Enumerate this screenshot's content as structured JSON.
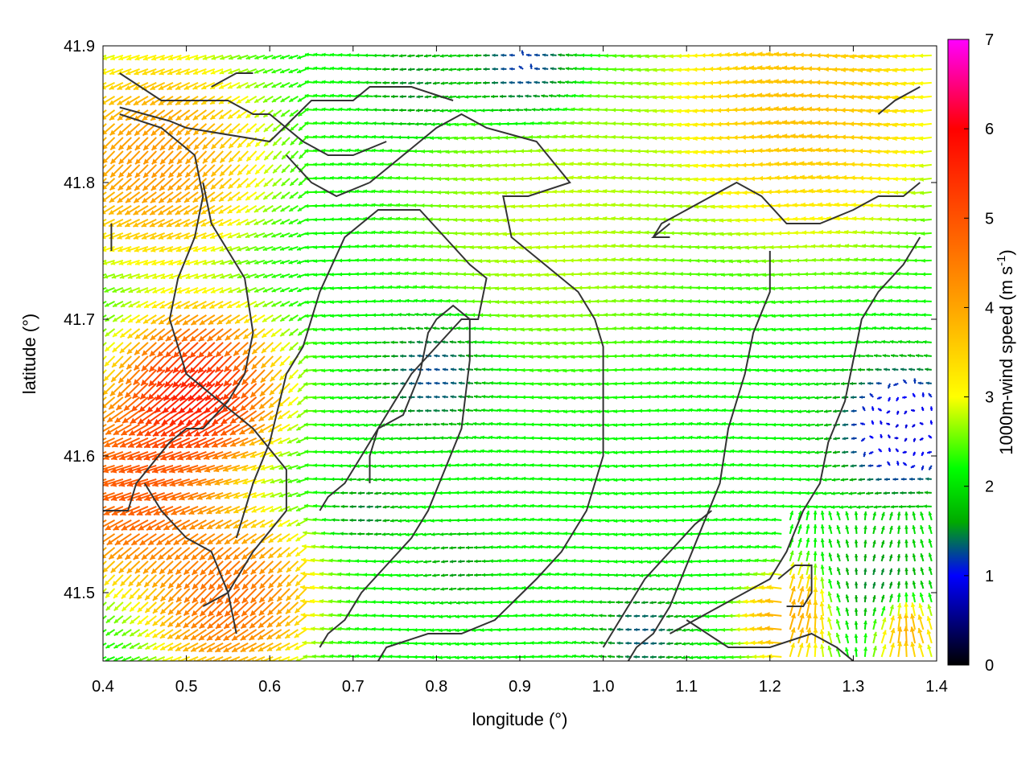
{
  "chart_data": {
    "type": "vector-field",
    "title": "",
    "xlabel": "longitude (°)",
    "ylabel": "latitude (°)",
    "xlim": [
      0.4,
      1.4
    ],
    "ylim": [
      41.45,
      41.9
    ],
    "xticks": [
      "0.4",
      "0.5",
      "0.6",
      "0.7",
      "0.8",
      "0.9",
      "1.0",
      "1.1",
      "1.2",
      "1.3",
      "1.4"
    ],
    "yticks": [
      "41.5",
      "41.6",
      "41.7",
      "41.8",
      "41.9"
    ],
    "colorbar": {
      "label": "1000m-wind speed (m s",
      "label_superscript": "-1",
      "label_suffix": ")",
      "range": [
        0,
        7
      ],
      "ticks": [
        "0",
        "1",
        "2",
        "3",
        "4",
        "5",
        "6",
        "7"
      ],
      "palette": [
        "#000000",
        "#0000ff",
        "#00aa00",
        "#00ff00",
        "#ffff00",
        "#ffa500",
        "#ff0000",
        "#ff00ff"
      ],
      "palette_positions": [
        0,
        1,
        1.6,
        2.2,
        3,
        4,
        6,
        7
      ]
    },
    "wind_field": {
      "description": "Wind vectors on a regular grid; arrows mostly point westward, strongest (5-7 m/s) over the western third around 0.45-0.6°E, 41.6-41.7°N; weak (<1.5 m/s) and variable near 0.78-0.85°E 41.6-41.73°N, near the top centre around 0.85-1.0°E 41.87-41.9°N and along the eastern edge 1.28-1.4°E 41.52-41.7°N.",
      "grid_spacing_deg": 0.01,
      "speed_centers": [
        {
          "lon": 0.52,
          "lat": 41.65,
          "speed": 6.8,
          "radius": 0.07
        },
        {
          "lon": 0.45,
          "lat": 41.58,
          "speed": 5.8,
          "radius": 0.08
        },
        {
          "lon": 0.47,
          "lat": 41.82,
          "speed": 4.8,
          "radius": 0.09
        },
        {
          "lon": 0.56,
          "lat": 41.5,
          "speed": 5.5,
          "radius": 0.07
        },
        {
          "lon": 1.25,
          "lat": 41.86,
          "speed": 4.2,
          "radius": 0.12
        },
        {
          "lon": 1.23,
          "lat": 41.48,
          "speed": 4.5,
          "radius": 0.04
        },
        {
          "lon": 1.36,
          "lat": 41.47,
          "speed": 5,
          "radius": 0.03
        },
        {
          "lon": 0.95,
          "lat": 41.78,
          "speed": 3,
          "radius": 0.12
        },
        {
          "lon": 0.8,
          "lat": 41.66,
          "speed": 0.9,
          "radius": 0.05
        },
        {
          "lon": 0.91,
          "lat": 41.88,
          "speed": 0.6,
          "radius": 0.05
        },
        {
          "lon": 1.36,
          "lat": 41.62,
          "speed": 0.4,
          "radius": 0.06
        },
        {
          "lon": 1.33,
          "lat": 41.5,
          "speed": 1.2,
          "radius": 0.05
        },
        {
          "lon": 1.05,
          "lat": 41.47,
          "speed": 1,
          "radius": 0.04
        },
        {
          "lon": 0.72,
          "lat": 41.56,
          "speed": 1.2,
          "radius": 0.03
        },
        {
          "lon": 0.83,
          "lat": 41.52,
          "speed": 1.3,
          "radius": 0.03
        },
        {
          "lon": 0.78,
          "lat": 41.87,
          "speed": 1.2,
          "radius": 0.04
        }
      ],
      "background_speed": 2.2
    },
    "contours": [
      [
        [
          0.42,
          41.855
        ],
        [
          0.48,
          41.845
        ],
        [
          0.5,
          41.84
        ],
        [
          0.6,
          41.83
        ],
        [
          0.65,
          41.86
        ],
        [
          0.7,
          41.86
        ],
        [
          0.72,
          41.87
        ],
        [
          0.77,
          41.87
        ],
        [
          0.82,
          41.86
        ]
      ],
      [
        [
          0.42,
          41.88
        ],
        [
          0.47,
          41.86
        ],
        [
          0.55,
          41.86
        ],
        [
          0.58,
          41.85
        ],
        [
          0.6,
          41.85
        ],
        [
          0.64,
          41.83
        ],
        [
          0.67,
          41.82
        ],
        [
          0.7,
          41.82
        ],
        [
          0.74,
          41.83
        ]
      ],
      [
        [
          0.72,
          41.8
        ],
        [
          0.78,
          41.83
        ],
        [
          0.8,
          41.84
        ],
        [
          0.83,
          41.85
        ],
        [
          0.86,
          41.84
        ],
        [
          0.92,
          41.83
        ],
        [
          0.96,
          41.8
        ],
        [
          0.91,
          41.79
        ],
        [
          0.88,
          41.79
        ],
        [
          0.89,
          41.76
        ],
        [
          0.93,
          41.74
        ],
        [
          0.97,
          41.72
        ],
        [
          0.99,
          41.7
        ],
        [
          1.0,
          41.68
        ],
        [
          1.0,
          41.65
        ],
        [
          1.0,
          41.6
        ],
        [
          0.98,
          41.56
        ],
        [
          0.95,
          41.53
        ],
        [
          0.92,
          41.51
        ],
        [
          0.87,
          41.48
        ],
        [
          0.83,
          41.47
        ],
        [
          0.79,
          41.47
        ],
        [
          0.74,
          41.46
        ],
        [
          0.73,
          41.45
        ]
      ],
      [
        [
          0.42,
          41.85
        ],
        [
          0.47,
          41.84
        ],
        [
          0.51,
          41.82
        ],
        [
          0.52,
          41.79
        ],
        [
          0.51,
          41.76
        ],
        [
          0.49,
          41.73
        ],
        [
          0.48,
          41.7
        ],
        [
          0.5,
          41.66
        ],
        [
          0.54,
          41.64
        ],
        [
          0.58,
          41.62
        ],
        [
          0.62,
          41.59
        ],
        [
          0.62,
          41.56
        ],
        [
          0.58,
          41.53
        ],
        [
          0.55,
          41.5
        ],
        [
          0.52,
          41.49
        ]
      ],
      [
        [
          0.41,
          41.75
        ],
        [
          0.41,
          41.77
        ]
      ],
      [
        [
          0.4,
          41.56
        ],
        [
          0.43,
          41.56
        ],
        [
          0.44,
          41.58
        ],
        [
          0.48,
          41.61
        ],
        [
          0.5,
          41.62
        ],
        [
          0.52,
          41.62
        ],
        [
          0.55,
          41.64
        ],
        [
          0.57,
          41.66
        ],
        [
          0.58,
          41.69
        ],
        [
          0.57,
          41.73
        ],
        [
          0.55,
          41.75
        ],
        [
          0.53,
          41.77
        ],
        [
          0.52,
          41.8
        ]
      ],
      [
        [
          0.62,
          41.82
        ],
        [
          0.65,
          41.8
        ],
        [
          0.68,
          41.79
        ],
        [
          0.72,
          41.8
        ]
      ],
      [
        [
          0.66,
          41.56
        ],
        [
          0.67,
          41.57
        ],
        [
          0.69,
          41.58
        ],
        [
          0.71,
          41.6
        ],
        [
          0.74,
          41.63
        ],
        [
          0.77,
          41.66
        ],
        [
          0.8,
          41.68
        ],
        [
          0.83,
          41.7
        ],
        [
          0.85,
          41.7
        ],
        [
          0.86,
          41.73
        ],
        [
          0.84,
          41.74
        ],
        [
          0.81,
          41.76
        ],
        [
          0.78,
          41.78
        ],
        [
          0.73,
          41.78
        ],
        [
          0.69,
          41.76
        ],
        [
          0.66,
          41.72
        ],
        [
          0.64,
          41.68
        ],
        [
          0.62,
          41.66
        ],
        [
          0.6,
          41.61
        ],
        [
          0.58,
          41.58
        ],
        [
          0.56,
          41.54
        ]
      ],
      [
        [
          0.72,
          41.58
        ],
        [
          0.72,
          41.6
        ],
        [
          0.73,
          41.62
        ],
        [
          0.76,
          41.63
        ],
        [
          0.78,
          41.66
        ],
        [
          0.79,
          41.69
        ],
        [
          0.8,
          41.7
        ],
        [
          0.82,
          41.71
        ],
        [
          0.84,
          41.7
        ],
        [
          0.84,
          41.67
        ],
        [
          0.83,
          41.62
        ],
        [
          0.81,
          41.59
        ],
        [
          0.79,
          41.56
        ],
        [
          0.77,
          41.54
        ],
        [
          0.74,
          41.52
        ],
        [
          0.71,
          41.5
        ],
        [
          0.69,
          41.48
        ],
        [
          0.67,
          41.47
        ],
        [
          0.66,
          41.46
        ]
      ],
      [
        [
          1.06,
          41.76
        ],
        [
          1.07,
          41.77
        ],
        [
          1.1,
          41.78
        ],
        [
          1.13,
          41.79
        ],
        [
          1.16,
          41.8
        ],
        [
          1.19,
          41.79
        ],
        [
          1.22,
          41.77
        ],
        [
          1.26,
          41.77
        ],
        [
          1.3,
          41.78
        ],
        [
          1.33,
          41.79
        ],
        [
          1.36,
          41.79
        ],
        [
          1.38,
          41.8
        ]
      ],
      [
        [
          1.2,
          41.75
        ],
        [
          1.2,
          41.72
        ],
        [
          1.18,
          41.69
        ],
        [
          1.17,
          41.66
        ],
        [
          1.15,
          41.62
        ],
        [
          1.14,
          41.58
        ],
        [
          1.12,
          41.55
        ],
        [
          1.1,
          41.52
        ],
        [
          1.08,
          41.49
        ],
        [
          1.06,
          41.47
        ],
        [
          1.04,
          41.46
        ],
        [
          1.03,
          41.45
        ]
      ],
      [
        [
          1.38,
          41.76
        ],
        [
          1.36,
          41.74
        ],
        [
          1.33,
          41.72
        ],
        [
          1.31,
          41.7
        ],
        [
          1.3,
          41.67
        ],
        [
          1.29,
          41.64
        ],
        [
          1.27,
          41.61
        ],
        [
          1.26,
          41.58
        ],
        [
          1.24,
          41.56
        ],
        [
          1.22,
          41.53
        ],
        [
          1.2,
          41.51
        ],
        [
          1.17,
          41.5
        ],
        [
          1.14,
          41.49
        ],
        [
          1.11,
          41.48
        ],
        [
          1.08,
          41.47
        ]
      ],
      [
        [
          1.21,
          41.51
        ],
        [
          1.23,
          41.52
        ],
        [
          1.25,
          41.52
        ],
        [
          1.25,
          41.5
        ],
        [
          1.24,
          41.49
        ],
        [
          1.22,
          41.49
        ]
      ],
      [
        [
          1.08,
          41.77
        ],
        [
          1.06,
          41.76
        ],
        [
          1.08,
          41.76
        ]
      ],
      [
        [
          1.1,
          41.48
        ],
        [
          1.15,
          41.46
        ],
        [
          1.2,
          41.46
        ],
        [
          1.25,
          41.47
        ],
        [
          1.28,
          41.46
        ],
        [
          1.3,
          41.45
        ]
      ],
      [
        [
          1.33,
          41.85
        ],
        [
          1.35,
          41.86
        ],
        [
          1.38,
          41.87
        ]
      ],
      [
        [
          0.53,
          41.87
        ],
        [
          0.56,
          41.88
        ],
        [
          0.58,
          41.88
        ]
      ],
      [
        [
          0.45,
          41.58
        ],
        [
          0.47,
          41.56
        ],
        [
          0.5,
          41.54
        ],
        [
          0.53,
          41.53
        ],
        [
          0.55,
          41.5
        ],
        [
          0.56,
          41.47
        ]
      ],
      [
        [
          1.0,
          41.46
        ],
        [
          1.02,
          41.48
        ],
        [
          1.05,
          41.51
        ],
        [
          1.08,
          41.53
        ],
        [
          1.11,
          41.55
        ],
        [
          1.13,
          41.56
        ]
      ]
    ]
  }
}
